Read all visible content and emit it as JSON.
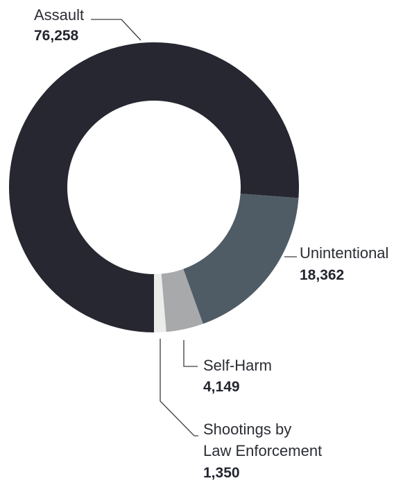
{
  "chart_data": {
    "type": "pie",
    "variant": "donut",
    "title": "",
    "slices": [
      {
        "label": "Assault",
        "value": 76258,
        "value_label": "76,258",
        "color": "#262730"
      },
      {
        "label": "Unintentional",
        "value": 18362,
        "value_label": "18,362",
        "color": "#4f5c66"
      },
      {
        "label": "Self-Harm",
        "value": 4149,
        "value_label": "4,149",
        "color": "#a8a9ab"
      },
      {
        "label": "Shootings by Law Enforcement",
        "value": 1350,
        "value_label": "1,350",
        "color": "#ececea",
        "label_lines": [
          "Shootings by",
          "Law Enforcement"
        ]
      }
    ]
  }
}
